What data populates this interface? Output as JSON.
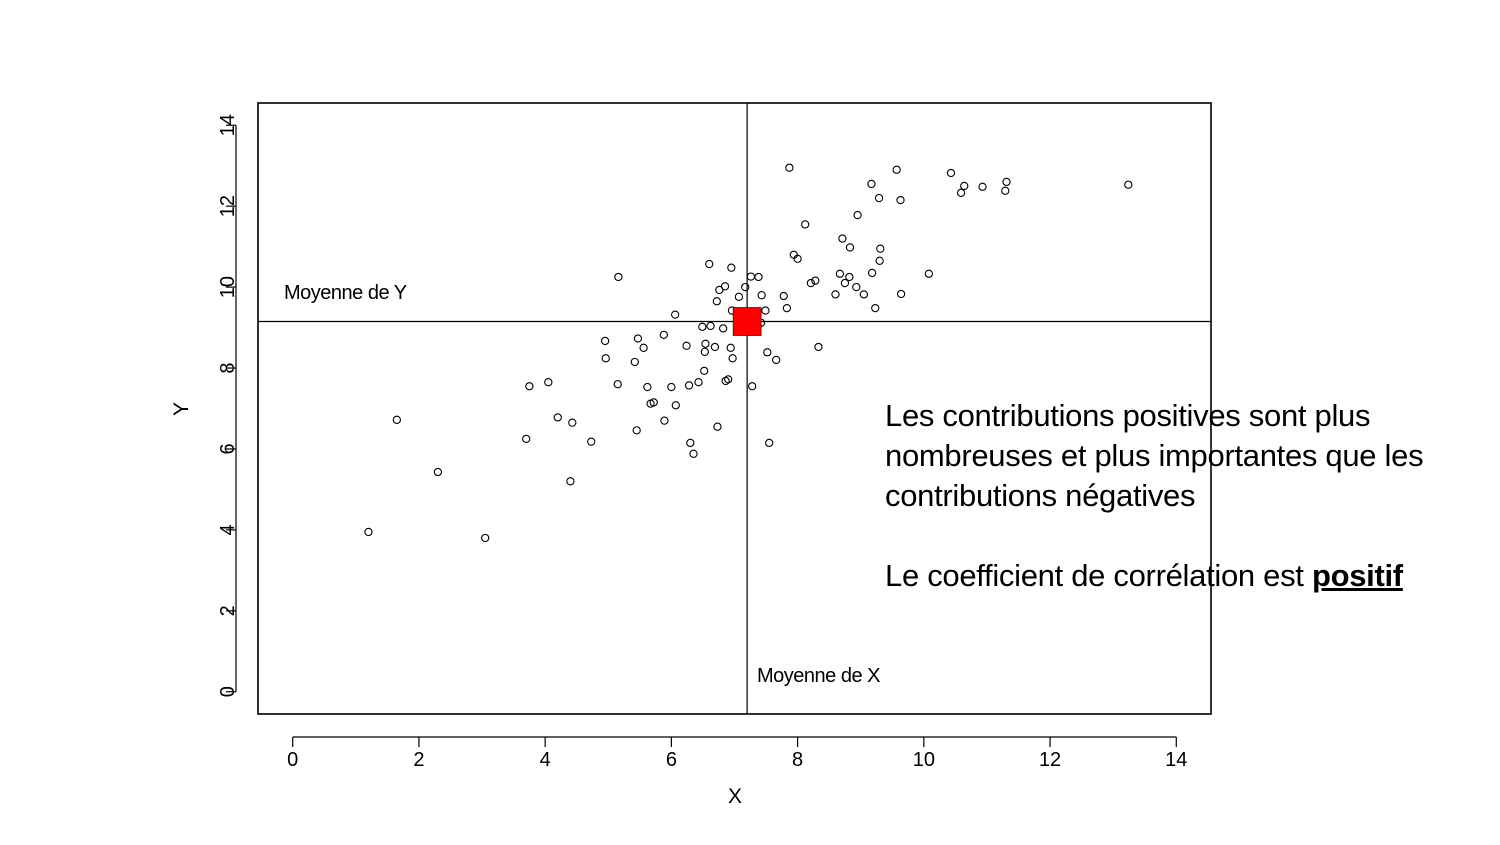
{
  "chart_data": {
    "type": "scatter",
    "xlabel": "X",
    "ylabel": "Y",
    "xlim": [
      -0.55,
      14.55
    ],
    "ylim": [
      -0.55,
      14.55
    ],
    "xticks": [
      0,
      2,
      4,
      6,
      8,
      10,
      12,
      14
    ],
    "yticks": [
      0,
      2,
      4,
      6,
      8,
      10,
      12,
      14
    ],
    "grid": false,
    "mean_x": 7.2,
    "mean_y": 9.15,
    "mean_x_label": "Moyenne de X",
    "mean_y_label": "Moyenne de Y",
    "mean_point_color": "#ff0000",
    "points": [
      [
        1.2,
        3.95
      ],
      [
        1.65,
        6.72
      ],
      [
        2.3,
        5.43
      ],
      [
        3.05,
        3.8
      ],
      [
        3.7,
        6.25
      ],
      [
        3.75,
        7.55
      ],
      [
        4.05,
        7.65
      ],
      [
        4.2,
        6.78
      ],
      [
        4.4,
        5.2
      ],
      [
        4.43,
        6.65
      ],
      [
        4.73,
        6.18
      ],
      [
        4.95,
        8.67
      ],
      [
        4.96,
        8.24
      ],
      [
        5.15,
        7.6
      ],
      [
        5.16,
        10.25
      ],
      [
        5.45,
        6.46
      ],
      [
        5.42,
        8.15
      ],
      [
        5.47,
        8.73
      ],
      [
        5.56,
        8.5
      ],
      [
        5.62,
        7.53
      ],
      [
        5.67,
        7.12
      ],
      [
        5.72,
        7.15
      ],
      [
        5.89,
        6.7
      ],
      [
        5.88,
        8.82
      ],
      [
        6.0,
        7.53
      ],
      [
        6.06,
        9.32
      ],
      [
        6.07,
        7.08
      ],
      [
        6.24,
        8.55
      ],
      [
        6.28,
        7.57
      ],
      [
        6.3,
        6.15
      ],
      [
        6.35,
        5.88
      ],
      [
        6.43,
        7.65
      ],
      [
        6.49,
        9.02
      ],
      [
        6.52,
        7.93
      ],
      [
        6.53,
        8.4
      ],
      [
        6.54,
        8.6
      ],
      [
        6.6,
        10.57
      ],
      [
        6.62,
        9.04
      ],
      [
        6.69,
        8.52
      ],
      [
        6.72,
        9.65
      ],
      [
        6.73,
        6.55
      ],
      [
        6.76,
        9.93
      ],
      [
        6.82,
        8.98
      ],
      [
        6.85,
        10.02
      ],
      [
        6.86,
        7.68
      ],
      [
        6.9,
        7.72
      ],
      [
        6.94,
        8.5
      ],
      [
        6.95,
        10.48
      ],
      [
        6.97,
        8.24
      ],
      [
        6.96,
        9.42
      ],
      [
        7.07,
        9.76
      ],
      [
        7.17,
        10.0
      ],
      [
        7.26,
        10.26
      ],
      [
        7.28,
        7.55
      ],
      [
        7.38,
        10.25
      ],
      [
        7.42,
        9.12
      ],
      [
        7.43,
        9.8
      ],
      [
        7.49,
        9.42
      ],
      [
        7.52,
        8.39
      ],
      [
        7.55,
        6.15
      ],
      [
        7.66,
        8.2
      ],
      [
        7.78,
        9.78
      ],
      [
        7.83,
        9.48
      ],
      [
        7.87,
        12.95
      ],
      [
        7.94,
        10.8
      ],
      [
        8.0,
        10.7
      ],
      [
        8.12,
        11.55
      ],
      [
        8.21,
        10.1
      ],
      [
        8.28,
        10.16
      ],
      [
        8.33,
        8.52
      ],
      [
        8.6,
        9.82
      ],
      [
        8.67,
        10.33
      ],
      [
        8.71,
        11.2
      ],
      [
        8.75,
        10.1
      ],
      [
        8.82,
        10.25
      ],
      [
        8.83,
        10.98
      ],
      [
        8.93,
        10.0
      ],
      [
        8.95,
        11.78
      ],
      [
        9.05,
        9.82
      ],
      [
        9.17,
        12.55
      ],
      [
        9.18,
        10.35
      ],
      [
        9.23,
        9.48
      ],
      [
        9.29,
        12.2
      ],
      [
        9.3,
        10.65
      ],
      [
        9.31,
        10.95
      ],
      [
        9.57,
        12.9
      ],
      [
        9.63,
        12.15
      ],
      [
        9.64,
        9.83
      ],
      [
        10.08,
        10.33
      ],
      [
        10.43,
        12.82
      ],
      [
        10.59,
        12.33
      ],
      [
        10.64,
        12.5
      ],
      [
        10.93,
        12.48
      ],
      [
        11.29,
        12.38
      ],
      [
        11.31,
        12.6
      ],
      [
        13.24,
        12.53
      ]
    ]
  },
  "comment": {
    "line1": "Les contributions positives sont plus",
    "line2": "nombreuses et plus importantes que les",
    "line3": "contributions négatives",
    "conclusion_prefix": "Le coefficient de corrélation est ",
    "conclusion_emphasis": "positif"
  }
}
